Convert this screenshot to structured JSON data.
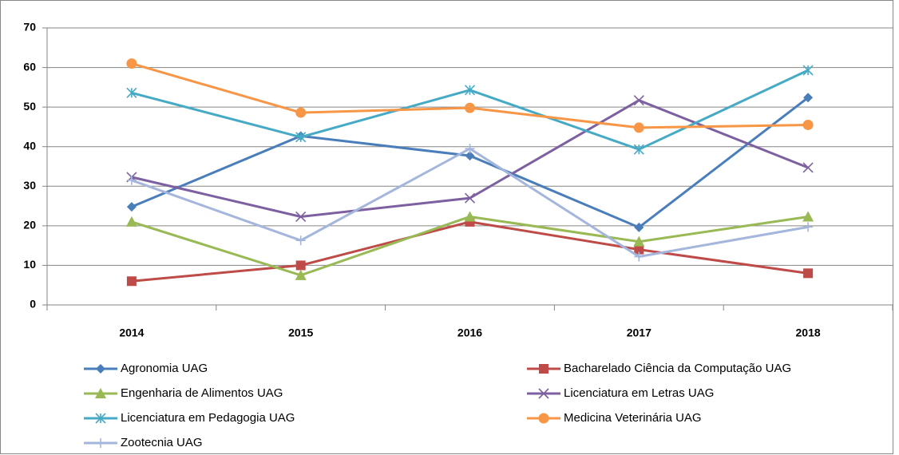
{
  "chart_data": {
    "type": "line",
    "categories": [
      "2014",
      "2015",
      "2016",
      "2017",
      "2018"
    ],
    "ylim": [
      0,
      70
    ],
    "yticks": [
      0,
      10,
      20,
      30,
      40,
      50,
      60,
      70
    ],
    "grid": true,
    "series": [
      {
        "name": "Agronomia UAG",
        "color": "#4a7ebb",
        "marker": "diamond",
        "values": [
          24.8,
          42.7,
          37.7,
          19.6,
          52.4
        ]
      },
      {
        "name": "Bacharelado Ciência da Computação UAG",
        "color": "#be4b48",
        "marker": "square",
        "values": [
          6,
          10,
          21,
          14,
          8
        ]
      },
      {
        "name": "Engenharia de Alimentos UAG",
        "color": "#98b954",
        "marker": "triangle",
        "values": [
          21,
          7.5,
          22.3,
          16,
          22.3
        ]
      },
      {
        "name": "Licenciatura em Letras UAG",
        "color": "#7d60a0",
        "marker": "x",
        "values": [
          32.3,
          22.3,
          27,
          51.7,
          34.7
        ]
      },
      {
        "name": "Licenciatura em Pedagogia UAG",
        "color": "#46aac5",
        "marker": "asterisk",
        "values": [
          53.6,
          42.4,
          54.3,
          39.3,
          59.3
        ]
      },
      {
        "name": "Medicina Veterinária UAG",
        "color": "#f79646",
        "marker": "circle",
        "values": [
          61,
          48.6,
          49.8,
          44.8,
          45.5
        ]
      },
      {
        "name": "Zootecnia  UAG",
        "color": "#a5b6dc",
        "marker": "plus",
        "values": [
          31.5,
          16.3,
          39.5,
          12.2,
          19.7
        ]
      }
    ]
  }
}
